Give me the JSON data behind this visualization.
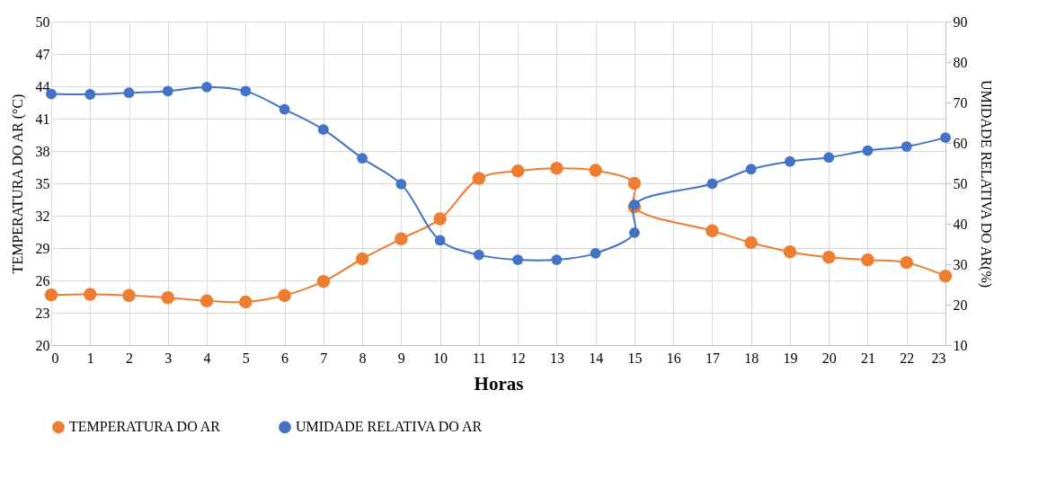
{
  "chart_data": {
    "type": "line",
    "xlabel": "Horas",
    "ylabel": "TEMPERATURA DO AR (°C)",
    "y2label": "UMIDADE RELATIVA DO AR(%)",
    "xlim": [
      0,
      23
    ],
    "xticks": [
      0,
      1,
      2,
      3,
      4,
      5,
      6,
      7,
      8,
      9,
      10,
      11,
      12,
      13,
      14,
      15,
      16,
      17,
      18,
      19,
      20,
      21,
      22,
      23
    ],
    "ylim": [
      20,
      50
    ],
    "yticks": [
      20,
      23,
      26,
      29,
      32,
      35,
      38,
      41,
      44,
      47,
      50
    ],
    "y2lim": [
      10,
      90
    ],
    "y2ticks": [
      10,
      20,
      30,
      40,
      50,
      60,
      70,
      80,
      90
    ],
    "grid": true,
    "legend": "bottom",
    "marker": "circle",
    "line_style": "solid",
    "series": [
      {
        "name": "TEMPERATURA DO AR",
        "color": "#ed7d31",
        "x": [
          0,
          1,
          2,
          3,
          4,
          5,
          6,
          7,
          8,
          9,
          10,
          11,
          12,
          13,
          14,
          15,
          15,
          17,
          18,
          19,
          20,
          21,
          22,
          23
        ],
        "values": [
          24.65,
          24.7,
          24.6,
          24.4,
          24.1,
          24.0,
          24.6,
          25.9,
          28.0,
          29.85,
          31.7,
          35.45,
          36.15,
          36.4,
          36.2,
          35.0,
          32.8,
          30.6,
          29.5,
          28.65,
          28.15,
          27.9,
          27.65,
          26.4
        ]
      },
      {
        "name": "UMIDADE RELATIVA DO AR",
        "color": "#4472c4",
        "axis": "y2",
        "x": [
          0,
          1,
          2,
          3,
          4,
          5,
          6,
          7,
          8,
          9,
          10,
          11,
          12,
          13,
          14,
          15,
          15,
          17,
          18,
          19,
          20,
          21,
          22,
          23
        ],
        "values": [
          72.1,
          72.0,
          72.4,
          72.8,
          73.8,
          72.8,
          68.3,
          63.3,
          56.2,
          49.8,
          35.9,
          32.3,
          31.1,
          31.1,
          32.7,
          37.8,
          44.7,
          49.9,
          53.5,
          55.4,
          56.4,
          58.1,
          59.1,
          61.3
        ]
      }
    ]
  }
}
